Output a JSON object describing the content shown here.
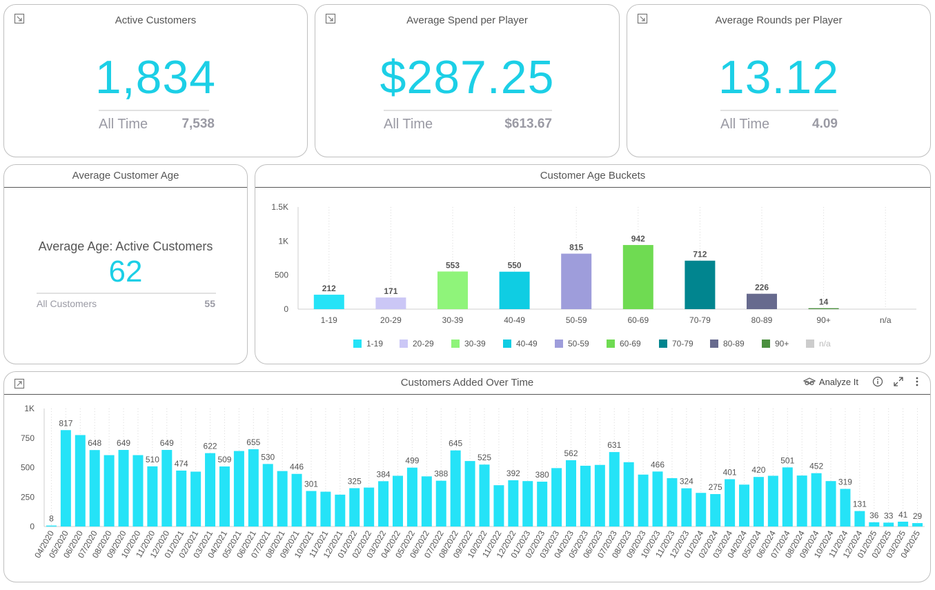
{
  "kpis": [
    {
      "title": "Active Customers",
      "value": "1,834",
      "all_time_label": "All Time",
      "all_time_value": "7,538"
    },
    {
      "title": "Average Spend per Player",
      "value": "$287.25",
      "all_time_label": "All Time",
      "all_time_value": "$613.67"
    },
    {
      "title": "Average Rounds per Player",
      "value": "13.12",
      "all_time_label": "All Time",
      "all_time_value": "4.09"
    }
  ],
  "avg_age": {
    "title": "Average Customer Age",
    "label": "Average Age: Active Customers",
    "value": "62",
    "sub_label": "All Customers",
    "sub_value": "55"
  },
  "toolbar": {
    "analyze_label": "Analyze It"
  },
  "chart_data": [
    {
      "type": "bar",
      "title": "Customer Age Buckets",
      "categories": [
        "1-19",
        "20-29",
        "30-39",
        "40-49",
        "50-59",
        "60-69",
        "70-79",
        "80-89",
        "90+",
        "n/a"
      ],
      "values": [
        212,
        171,
        553,
        550,
        815,
        942,
        712,
        226,
        14,
        null
      ],
      "colors": [
        "#25e3f7",
        "#cbc7f6",
        "#8ff47a",
        "#0fcde3",
        "#9e9ddb",
        "#6fdb52",
        "#01858f",
        "#676a8e",
        "#4a8f3e",
        "#cccccc"
      ],
      "yticks": [
        "0",
        "500",
        "1K",
        "1.5K"
      ],
      "ylim": [
        0,
        1500
      ],
      "legend": "bottom",
      "grid": true
    },
    {
      "type": "bar",
      "title": "Customers Added Over Time",
      "categories": [
        "04/2020",
        "05/2020",
        "06/2020",
        "07/2020",
        "08/2020",
        "09/2020",
        "10/2020",
        "11/2020",
        "12/2020",
        "01/2021",
        "02/2021",
        "03/2021",
        "04/2021",
        "05/2021",
        "06/2021",
        "07/2021",
        "08/2021",
        "09/2021",
        "10/2021",
        "11/2021",
        "12/2021",
        "01/2022",
        "02/2022",
        "03/2022",
        "04/2022",
        "05/2022",
        "06/2022",
        "07/2022",
        "08/2022",
        "09/2022",
        "10/2022",
        "11/2022",
        "12/2022",
        "01/2023",
        "02/2023",
        "03/2023",
        "04/2023",
        "05/2023",
        "06/2023",
        "07/2023",
        "08/2023",
        "09/2023",
        "10/2023",
        "11/2023",
        "12/2023",
        "01/2024",
        "02/2024",
        "03/2024",
        "04/2024",
        "05/2024",
        "06/2024",
        "07/2024",
        "08/2024",
        "09/2024",
        "10/2024",
        "11/2024",
        "12/2024",
        "01/2025",
        "02/2025",
        "03/2025",
        "04/2025"
      ],
      "values": [
        8,
        817,
        775,
        648,
        605,
        649,
        605,
        510,
        649,
        474,
        465,
        622,
        509,
        640,
        655,
        530,
        470,
        446,
        301,
        295,
        270,
        325,
        330,
        384,
        430,
        499,
        425,
        388,
        645,
        555,
        525,
        350,
        392,
        385,
        380,
        495,
        562,
        515,
        522,
        631,
        545,
        440,
        466,
        410,
        324,
        285,
        275,
        401,
        355,
        420,
        430,
        501,
        432,
        452,
        385,
        319,
        131,
        36,
        33,
        41,
        29
      ],
      "labels": [
        "8",
        "817",
        "",
        "648",
        "",
        "649",
        "",
        "510",
        "649",
        "474",
        "",
        "622",
        "509",
        "",
        "655",
        "530",
        "",
        "446",
        "301",
        "",
        "",
        "325",
        "",
        "384",
        "",
        "499",
        "",
        "388",
        "645",
        "",
        "525",
        "",
        "392",
        "",
        "380",
        "",
        "562",
        "",
        "",
        "631",
        "",
        "",
        "466",
        "",
        "324",
        "",
        "275",
        "401",
        "",
        "420",
        "",
        "501",
        "",
        "452",
        "",
        "319",
        "131",
        "36",
        "33",
        "41",
        "29"
      ],
      "color": "#25e3f7",
      "yticks": [
        "0",
        "250",
        "500",
        "750",
        "1K"
      ],
      "ylim": [
        0,
        1000
      ],
      "grid": true
    }
  ]
}
